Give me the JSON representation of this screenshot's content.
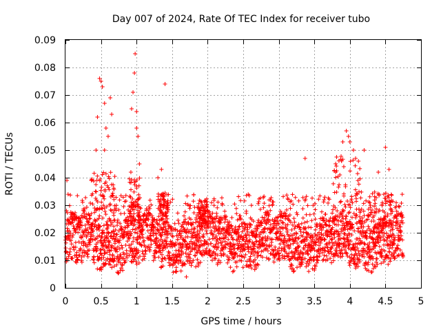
{
  "chart_data": {
    "type": "scatter",
    "title": "Day 007 of 2024, Rate Of TEC Index for receiver tubo",
    "xlabel": "GPS time / hours",
    "ylabel": "ROTI / TECUs",
    "xlim": [
      0,
      5
    ],
    "ylim": [
      0,
      0.09
    ],
    "grid": true,
    "x_ticks": [
      0,
      0.5,
      1,
      1.5,
      2,
      2.5,
      3,
      3.5,
      4,
      4.5,
      5
    ],
    "x_tick_labels": [
      "0",
      "0.5",
      "1",
      "1.5",
      "2",
      "2.5",
      "3",
      "3.5",
      "4",
      "4.5",
      "5"
    ],
    "y_ticks": [
      0,
      0.01,
      0.02,
      0.03,
      0.04,
      0.05,
      0.06,
      0.07,
      0.08,
      0.09
    ],
    "y_tick_labels": [
      "0",
      "0.01",
      "0.02",
      "0.03",
      "0.04",
      "0.05",
      "0.06",
      "0.07",
      "0.08",
      "0.09"
    ],
    "marker": "+",
    "marker_color": "#ff0000",
    "series": [
      {
        "name": "ROTI",
        "x_range": [
          0,
          4.75
        ],
        "baseline_band": [
          0.008,
          0.025
        ],
        "spikes": [
          {
            "x": 0.02,
            "y": 0.039
          },
          {
            "x": 0.45,
            "y": 0.062
          },
          {
            "x": 0.48,
            "y": 0.076
          },
          {
            "x": 0.5,
            "y": 0.075
          },
          {
            "x": 0.52,
            "y": 0.073
          },
          {
            "x": 0.55,
            "y": 0.067
          },
          {
            "x": 0.57,
            "y": 0.058
          },
          {
            "x": 0.6,
            "y": 0.055
          },
          {
            "x": 0.63,
            "y": 0.069
          },
          {
            "x": 0.65,
            "y": 0.063
          },
          {
            "x": 0.55,
            "y": 0.05
          },
          {
            "x": 0.43,
            "y": 0.05
          },
          {
            "x": 0.93,
            "y": 0.065
          },
          {
            "x": 0.95,
            "y": 0.071
          },
          {
            "x": 0.97,
            "y": 0.078
          },
          {
            "x": 0.98,
            "y": 0.085
          },
          {
            "x": 1.0,
            "y": 0.064
          },
          {
            "x": 1.0,
            "y": 0.058
          },
          {
            "x": 1.02,
            "y": 0.055
          },
          {
            "x": 1.04,
            "y": 0.045
          },
          {
            "x": 0.92,
            "y": 0.042
          },
          {
            "x": 1.3,
            "y": 0.04
          },
          {
            "x": 1.35,
            "y": 0.043
          },
          {
            "x": 1.4,
            "y": 0.074
          },
          {
            "x": 1.7,
            "y": 0.004
          },
          {
            "x": 3.37,
            "y": 0.047
          },
          {
            "x": 3.8,
            "y": 0.042
          },
          {
            "x": 3.9,
            "y": 0.053
          },
          {
            "x": 3.95,
            "y": 0.057
          },
          {
            "x": 3.98,
            "y": 0.055
          },
          {
            "x": 4.0,
            "y": 0.053
          },
          {
            "x": 4.05,
            "y": 0.05
          },
          {
            "x": 4.08,
            "y": 0.047
          },
          {
            "x": 4.12,
            "y": 0.046
          },
          {
            "x": 4.2,
            "y": 0.05
          },
          {
            "x": 4.4,
            "y": 0.042
          },
          {
            "x": 4.5,
            "y": 0.051
          },
          {
            "x": 4.55,
            "y": 0.043
          }
        ]
      }
    ]
  }
}
